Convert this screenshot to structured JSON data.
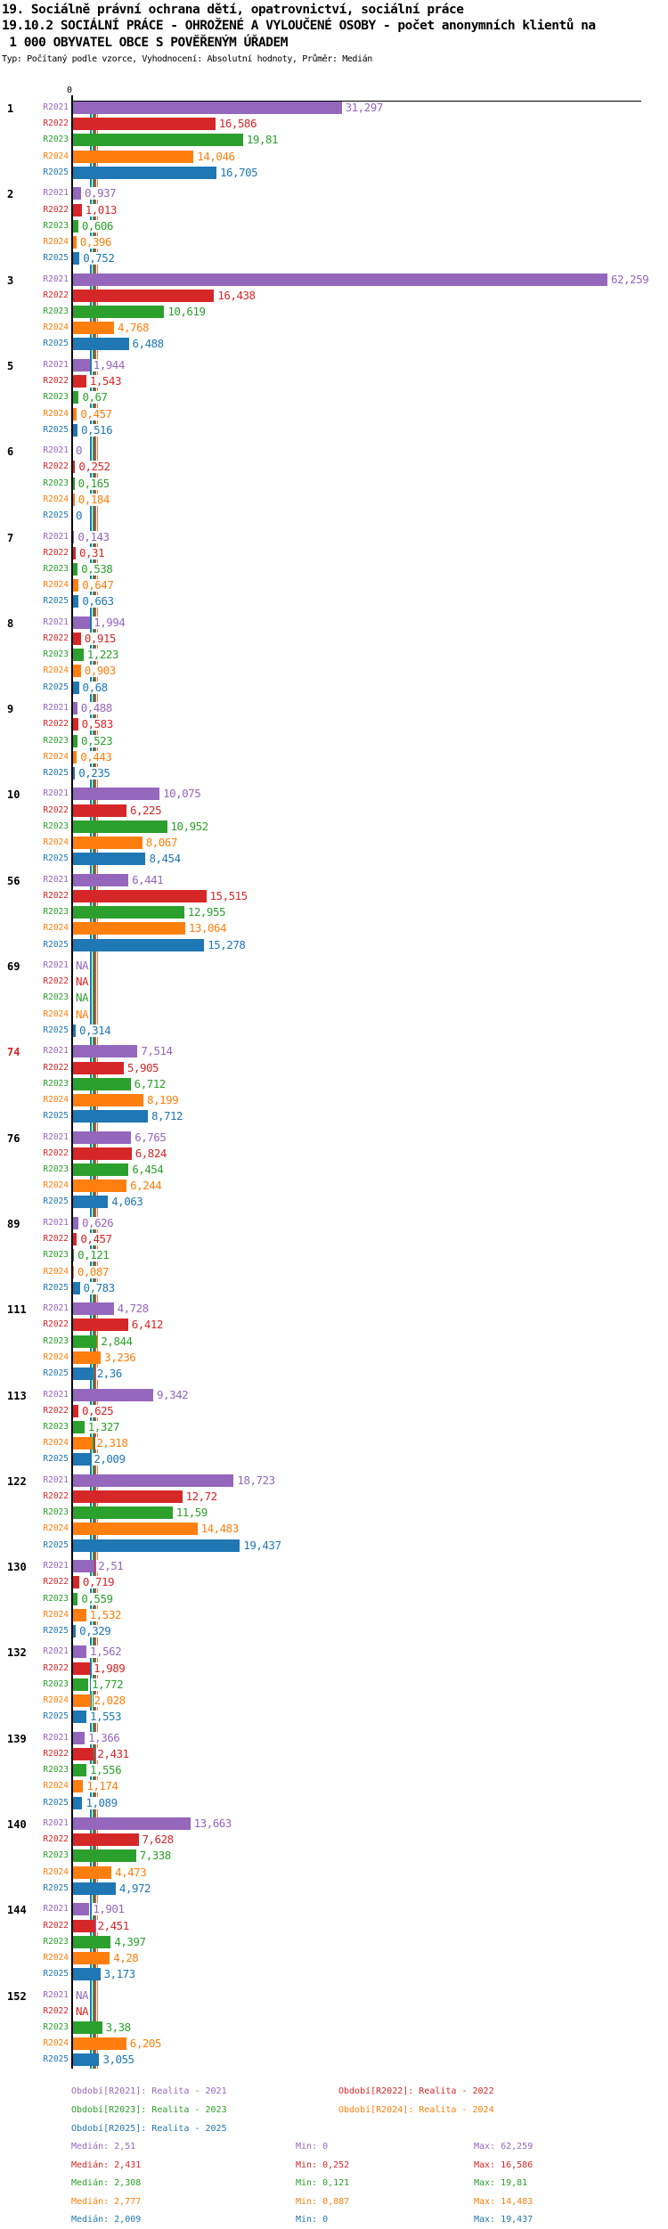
{
  "title": {
    "line1": "19. Sociálně právní ochrana dětí, opatrovnictví, sociální práce",
    "line2": "19.10.2 SOCIÁLNÍ PRÁCE - OHROŽENÉ A VYLOUČENÉ OSOBY - počet anonymních klientů na",
    "line3": " 1 000 OBYVATEL OBCE S POVĚŘENÝM ÚŘADEM",
    "meta": "Typ: Počítaný podle vzorce, Vyhodnocení: Absolutní hodnoty, Průměr: Medián"
  },
  "chart_data": {
    "type": "bar",
    "orientation": "horizontal-grouped",
    "x_axis": {
      "zero_label": "0",
      "max": 62.259,
      "gridlines": false
    },
    "na_text": "NA",
    "decimal_separator": ",",
    "series": [
      {
        "name": "R2021",
        "color": "#9467bd",
        "period_label": "Období[R2021]: Realita - 2021",
        "median": 2.51,
        "min": 0,
        "max": 62.259
      },
      {
        "name": "R2022",
        "color": "#d62728",
        "period_label": "Období[R2022]: Realita - 2022",
        "median": 2.431,
        "min": 0.252,
        "max": 16.586
      },
      {
        "name": "R2023",
        "color": "#2ca02c",
        "period_label": "Období[R2023]: Realita - 2023",
        "median": 2.308,
        "min": 0.121,
        "max": 19.81
      },
      {
        "name": "R2024",
        "color": "#ff7f0e",
        "period_label": "Období[R2024]: Realita - 2024",
        "median": 2.777,
        "min": 0.087,
        "max": 14.483
      },
      {
        "name": "R2025",
        "color": "#1f77b4",
        "period_label": "Období[R2025]: Realita - 2025",
        "median": 2.009,
        "min": 0,
        "max": 19.437
      }
    ],
    "groups": [
      {
        "id": "1",
        "values": [
          31.297,
          16.586,
          19.81,
          14.046,
          16.705
        ]
      },
      {
        "id": "2",
        "values": [
          0.937,
          1.013,
          0.606,
          0.396,
          0.752
        ]
      },
      {
        "id": "3",
        "values": [
          62.259,
          16.438,
          10.619,
          4.768,
          6.488
        ]
      },
      {
        "id": "5",
        "values": [
          1.944,
          1.543,
          0.67,
          0.457,
          0.516
        ]
      },
      {
        "id": "6",
        "values": [
          0,
          0.252,
          0.165,
          0.184,
          0
        ]
      },
      {
        "id": "7",
        "values": [
          0.143,
          0.31,
          0.538,
          0.647,
          0.663
        ]
      },
      {
        "id": "8",
        "values": [
          1.994,
          0.915,
          1.223,
          0.903,
          0.68
        ]
      },
      {
        "id": "9",
        "values": [
          0.488,
          0.583,
          0.523,
          0.443,
          0.235
        ]
      },
      {
        "id": "10",
        "values": [
          10.075,
          6.225,
          10.952,
          8.067,
          8.454
        ]
      },
      {
        "id": "56",
        "values": [
          6.441,
          15.515,
          12.955,
          13.064,
          15.278
        ]
      },
      {
        "id": "69",
        "values": [
          null,
          null,
          null,
          null,
          0.314
        ]
      },
      {
        "id": "74",
        "values": [
          7.514,
          5.905,
          6.712,
          8.199,
          8.712
        ],
        "highlight": true
      },
      {
        "id": "76",
        "values": [
          6.765,
          6.824,
          6.454,
          6.244,
          4.063
        ]
      },
      {
        "id": "89",
        "values": [
          0.626,
          0.457,
          0.121,
          0.087,
          0.783
        ]
      },
      {
        "id": "111",
        "values": [
          4.728,
          6.412,
          2.844,
          3.236,
          2.36
        ]
      },
      {
        "id": "113",
        "values": [
          9.342,
          0.625,
          1.327,
          2.318,
          2.009
        ]
      },
      {
        "id": "122",
        "values": [
          18.723,
          12.72,
          11.59,
          14.483,
          19.437
        ]
      },
      {
        "id": "130",
        "values": [
          2.51,
          0.719,
          0.559,
          1.532,
          0.329
        ]
      },
      {
        "id": "132",
        "values": [
          1.562,
          1.989,
          1.772,
          2.028,
          1.553
        ]
      },
      {
        "id": "139",
        "values": [
          1.366,
          2.431,
          1.556,
          1.174,
          1.089
        ]
      },
      {
        "id": "140",
        "values": [
          13.663,
          7.628,
          7.338,
          4.473,
          4.972
        ]
      },
      {
        "id": "144",
        "values": [
          1.901,
          2.451,
          4.397,
          4.28,
          3.173
        ]
      },
      {
        "id": "152",
        "values": [
          null,
          null,
          3.38,
          6.205,
          3.055
        ]
      }
    ],
    "highlight_color": "#d62728",
    "legend_position": "bottom",
    "stats_prefixes": {
      "median": "Medián: ",
      "min": "Min: ",
      "max": "Max: "
    }
  }
}
